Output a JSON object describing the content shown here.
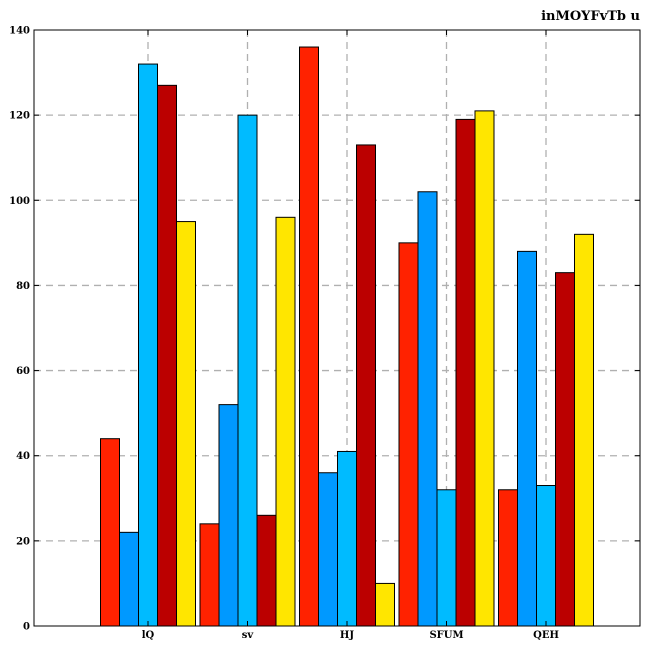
{
  "chart_data": {
    "type": "bar",
    "title": "inMOYFvTb u",
    "xlabel": "",
    "ylabel": "",
    "categories": [
      "lQ",
      "sv",
      "HJ",
      "SFUM",
      "QEH"
    ],
    "ylim": [
      0,
      140
    ],
    "yticks": [
      0,
      20,
      40,
      60,
      80,
      100,
      120,
      140
    ],
    "grid": true,
    "series": [
      {
        "color": "#ff2200",
        "values": [
          44,
          24,
          136,
          90,
          32
        ]
      },
      {
        "color": "#0099ff",
        "values": [
          22,
          52,
          36,
          102,
          88
        ]
      },
      {
        "color": "#00bbff",
        "values": [
          132,
          120,
          41,
          32,
          33
        ]
      },
      {
        "color": "#bb0000",
        "values": [
          127,
          26,
          113,
          119,
          83
        ]
      },
      {
        "color": "#ffe600",
        "values": [
          95,
          96,
          10,
          121,
          92
        ]
      }
    ]
  }
}
